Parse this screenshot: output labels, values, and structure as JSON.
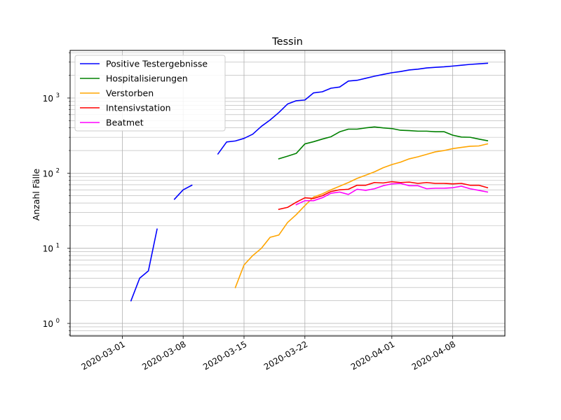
{
  "chart_data": {
    "type": "line",
    "title": "Tessin",
    "xlabel": "",
    "ylabel": "Anzahl Fälle",
    "yscale": "log",
    "ylim": [
      0.68,
      4300
    ],
    "xlim": [
      "2020-02-24",
      "2020-04-14"
    ],
    "grid": true,
    "grid_minor_y": true,
    "legend_position": "top-left",
    "x_ticks": [
      "2020-03-01",
      "2020-03-08",
      "2020-03-15",
      "2020-03-22",
      "2020-04-01",
      "2020-04-08"
    ],
    "y_ticks": [
      {
        "value": 1,
        "base": "10",
        "exp": "0"
      },
      {
        "value": 10,
        "base": "10",
        "exp": "1"
      },
      {
        "value": 100,
        "base": "10",
        "exp": "2"
      },
      {
        "value": 1000,
        "base": "10",
        "exp": "3"
      }
    ],
    "series": [
      {
        "name": "Positive Testergebnisse",
        "color": "#0000ff",
        "points": [
          [
            "2020-03-02",
            2
          ],
          [
            "2020-03-03",
            4
          ],
          [
            "2020-03-04",
            5
          ],
          [
            "2020-03-05",
            18
          ],
          null,
          [
            "2020-03-07",
            45
          ],
          [
            "2020-03-08",
            60
          ],
          [
            "2020-03-09",
            69
          ],
          null,
          [
            "2020-03-12",
            180
          ],
          [
            "2020-03-13",
            260
          ],
          [
            "2020-03-14",
            268
          ],
          [
            "2020-03-15",
            290
          ],
          [
            "2020-03-16",
            330
          ],
          [
            "2020-03-17",
            420
          ],
          [
            "2020-03-18",
            510
          ],
          [
            "2020-03-19",
            640
          ],
          [
            "2020-03-20",
            830
          ],
          [
            "2020-03-21",
            920
          ],
          [
            "2020-03-22",
            940
          ],
          [
            "2020-03-23",
            1170
          ],
          [
            "2020-03-24",
            1210
          ],
          [
            "2020-03-25",
            1350
          ],
          [
            "2020-03-26",
            1400
          ],
          [
            "2020-03-27",
            1680
          ],
          [
            "2020-03-28",
            1720
          ],
          [
            "2020-03-29",
            1830
          ],
          [
            "2020-03-30",
            1950
          ],
          [
            "2020-03-31",
            2060
          ],
          [
            "2020-04-01",
            2170
          ],
          [
            "2020-04-02",
            2250
          ],
          [
            "2020-04-03",
            2360
          ],
          [
            "2020-04-04",
            2420
          ],
          [
            "2020-04-05",
            2510
          ],
          [
            "2020-04-06",
            2560
          ],
          [
            "2020-04-07",
            2600
          ],
          [
            "2020-04-08",
            2660
          ],
          [
            "2020-04-09",
            2730
          ],
          [
            "2020-04-10",
            2800
          ],
          [
            "2020-04-11",
            2850
          ],
          [
            "2020-04-12",
            2900
          ]
        ]
      },
      {
        "name": "Hospitalisierungen",
        "color": "#008000",
        "points": [
          [
            "2020-03-19",
            155
          ],
          [
            "2020-03-20",
            168
          ],
          [
            "2020-03-21",
            183
          ],
          [
            "2020-03-22",
            245
          ],
          [
            "2020-03-23",
            262
          ],
          [
            "2020-03-24",
            284
          ],
          [
            "2020-03-25",
            305
          ],
          [
            "2020-03-26",
            355
          ],
          [
            "2020-03-27",
            385
          ],
          [
            "2020-03-28",
            385
          ],
          [
            "2020-03-29",
            400
          ],
          [
            "2020-03-30",
            412
          ],
          [
            "2020-03-31",
            400
          ],
          [
            "2020-04-01",
            392
          ],
          [
            "2020-04-02",
            372
          ],
          [
            "2020-04-03",
            368
          ],
          [
            "2020-04-04",
            362
          ],
          [
            "2020-04-05",
            362
          ],
          [
            "2020-04-06",
            356
          ],
          [
            "2020-04-07",
            356
          ],
          [
            "2020-04-08",
            320
          ],
          [
            "2020-04-09",
            302
          ],
          [
            "2020-04-10",
            300
          ],
          [
            "2020-04-11",
            284
          ],
          [
            "2020-04-12",
            270
          ]
        ]
      },
      {
        "name": "Verstorben",
        "color": "#ffa500",
        "points": [
          [
            "2020-03-14",
            3
          ],
          [
            "2020-03-15",
            6
          ],
          [
            "2020-03-16",
            8
          ],
          [
            "2020-03-17",
            10
          ],
          [
            "2020-03-18",
            14
          ],
          [
            "2020-03-19",
            15
          ],
          [
            "2020-03-20",
            22
          ],
          [
            "2020-03-21",
            28
          ],
          [
            "2020-03-22",
            37
          ],
          [
            "2020-03-23",
            48
          ],
          [
            "2020-03-24",
            53
          ],
          [
            "2020-03-25",
            60
          ],
          [
            "2020-03-26",
            67
          ],
          [
            "2020-03-27",
            75
          ],
          [
            "2020-03-28",
            85
          ],
          [
            "2020-03-29",
            94
          ],
          [
            "2020-03-30",
            104
          ],
          [
            "2020-03-31",
            118
          ],
          [
            "2020-04-01",
            130
          ],
          [
            "2020-04-02",
            140
          ],
          [
            "2020-04-03",
            155
          ],
          [
            "2020-04-04",
            165
          ],
          [
            "2020-04-05",
            178
          ],
          [
            "2020-04-06",
            192
          ],
          [
            "2020-04-07",
            200
          ],
          [
            "2020-04-08",
            212
          ],
          [
            "2020-04-09",
            220
          ],
          [
            "2020-04-10",
            228
          ],
          [
            "2020-04-11",
            230
          ],
          [
            "2020-04-12",
            245
          ]
        ]
      },
      {
        "name": "Intensivstation",
        "color": "#ff0000",
        "points": [
          [
            "2020-03-19",
            33
          ],
          [
            "2020-03-20",
            35
          ],
          [
            "2020-03-21",
            41
          ],
          [
            "2020-03-22",
            47
          ],
          [
            "2020-03-23",
            46
          ],
          [
            "2020-03-24",
            50
          ],
          [
            "2020-03-25",
            57
          ],
          [
            "2020-03-26",
            60
          ],
          [
            "2020-03-27",
            61
          ],
          [
            "2020-03-28",
            69
          ],
          [
            "2020-03-29",
            69
          ],
          [
            "2020-03-30",
            75
          ],
          [
            "2020-03-31",
            74
          ],
          [
            "2020-04-01",
            77
          ],
          [
            "2020-04-02",
            75
          ],
          [
            "2020-04-03",
            76
          ],
          [
            "2020-04-04",
            73
          ],
          [
            "2020-04-05",
            75
          ],
          [
            "2020-04-06",
            73
          ],
          [
            "2020-04-07",
            73
          ],
          [
            "2020-04-08",
            72
          ],
          [
            "2020-04-09",
            73
          ],
          [
            "2020-04-10",
            69
          ],
          [
            "2020-04-11",
            69
          ],
          [
            "2020-04-12",
            64
          ]
        ]
      },
      {
        "name": "Beatmet",
        "color": "#ff00ff",
        "points": [
          [
            "2020-03-21",
            38
          ],
          [
            "2020-03-22",
            43
          ],
          [
            "2020-03-23",
            43
          ],
          [
            "2020-03-24",
            47
          ],
          [
            "2020-03-25",
            54
          ],
          [
            "2020-03-26",
            56
          ],
          [
            "2020-03-27",
            52
          ],
          [
            "2020-03-28",
            61
          ],
          [
            "2020-03-29",
            59
          ],
          [
            "2020-03-30",
            62
          ],
          [
            "2020-03-31",
            68
          ],
          [
            "2020-04-01",
            72
          ],
          [
            "2020-04-02",
            73
          ],
          [
            "2020-04-03",
            68
          ],
          [
            "2020-04-04",
            68
          ],
          [
            "2020-04-05",
            62
          ],
          [
            "2020-04-06",
            63
          ],
          [
            "2020-04-07",
            63
          ],
          [
            "2020-04-08",
            64
          ],
          [
            "2020-04-09",
            67
          ],
          [
            "2020-04-10",
            62
          ],
          [
            "2020-04-11",
            59
          ],
          [
            "2020-04-12",
            56
          ]
        ]
      }
    ]
  }
}
